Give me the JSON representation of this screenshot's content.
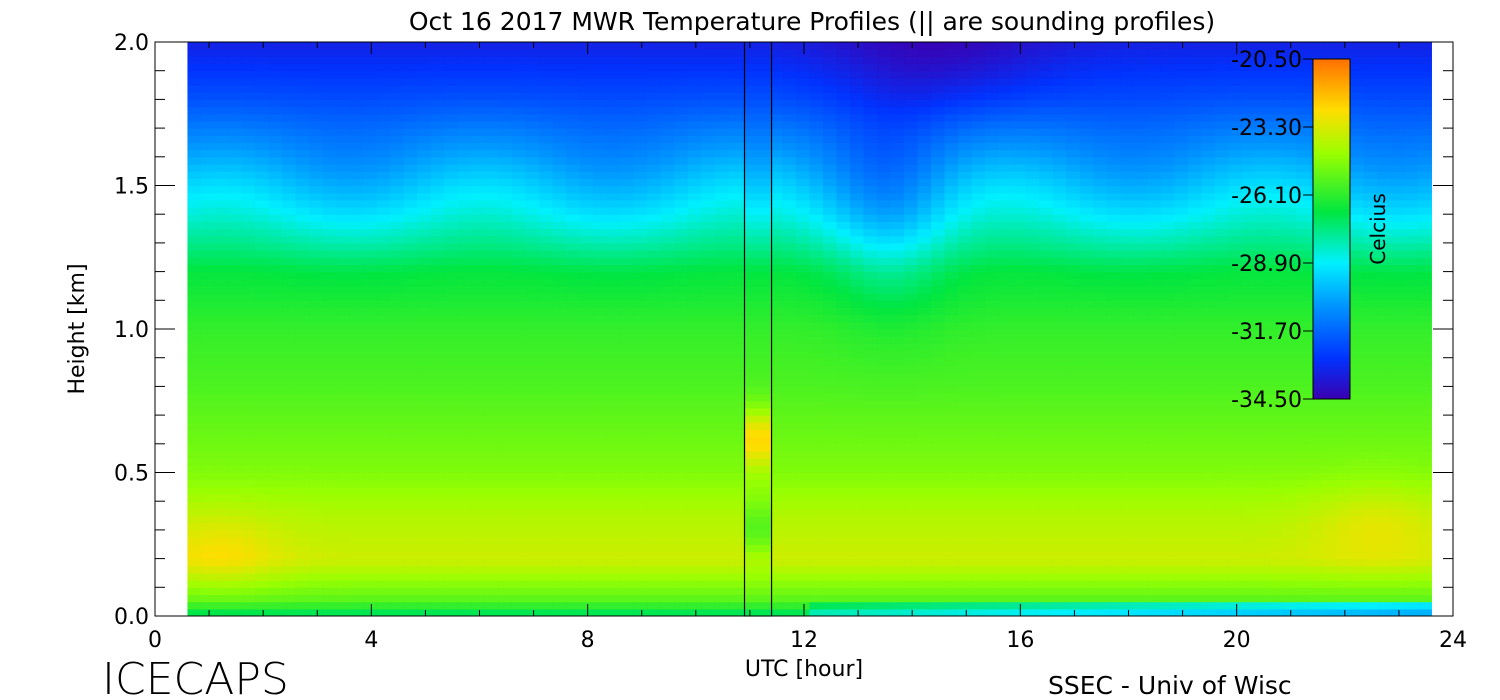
{
  "chart_data": {
    "type": "heatmap",
    "title": "Oct 16 2017 MWR Temperature Profiles (|| are sounding profiles)",
    "xlabel": "UTC [hour]",
    "ylabel": "Height [km]",
    "xlim": [
      0,
      24
    ],
    "ylim": [
      0,
      2
    ],
    "x_ticks": [
      "0",
      "4",
      "8",
      "12",
      "16",
      "20",
      "24"
    ],
    "y_ticks": [
      "0.0",
      "0.5",
      "1.0",
      "1.5",
      "2.0"
    ],
    "data_time_range": [
      0.6,
      23.6
    ],
    "sounding_profiles_utc": [
      10.9,
      11.4
    ],
    "colorbar": {
      "label": "Celcius",
      "ticks": [
        "-20.50",
        "-23.30",
        "-26.10",
        "-28.90",
        "-31.70",
        "-34.50"
      ],
      "range": [
        -34.5,
        -20.5
      ]
    },
    "approx_profile": {
      "heights_km": [
        0.0,
        0.05,
        0.2,
        0.35,
        0.5,
        0.8,
        1.0,
        1.2,
        1.4,
        1.6,
        1.8,
        2.0
      ],
      "temps_c": [
        -27.5,
        -25.5,
        -23.5,
        -24.0,
        -24.8,
        -25.6,
        -26.0,
        -26.8,
        -28.8,
        -30.6,
        -32.2,
        -33.4
      ]
    }
  },
  "footer": {
    "left_label": "ICECAPS",
    "right_label": "SSEC - Univ of Wisc"
  }
}
